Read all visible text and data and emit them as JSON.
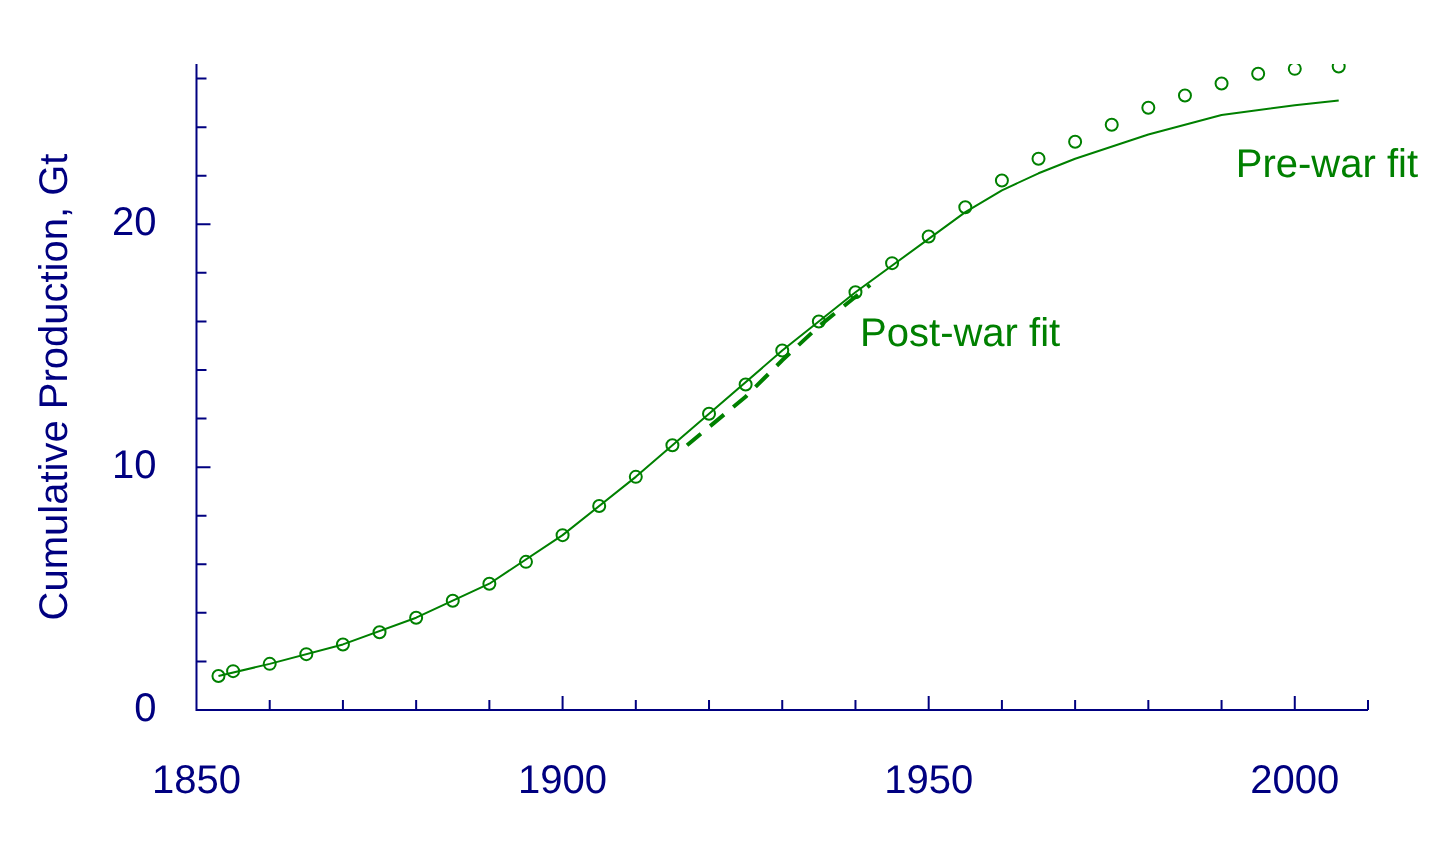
{
  "chart_data": {
    "type": "scatter",
    "ylabel": "Cumulative Production, Gt",
    "xlim": [
      1850,
      2010
    ],
    "ylim": [
      0,
      26.6
    ],
    "xticks": [
      1850,
      {
        "value": 1860,
        "label": null
      },
      {
        "value": 1870,
        "label": null
      },
      {
        "value": 1880,
        "label": null
      },
      {
        "value": 1890,
        "label": null
      },
      1900,
      {
        "value": 1910,
        "label": null
      },
      {
        "value": 1920,
        "label": null
      },
      {
        "value": 1930,
        "label": null
      },
      {
        "value": 1940,
        "label": null
      },
      1950,
      {
        "value": 1960,
        "label": null
      },
      {
        "value": 1970,
        "label": null
      },
      {
        "value": 1980,
        "label": null
      },
      {
        "value": 1990,
        "label": null
      },
      2000,
      {
        "value": 2010,
        "label": null
      }
    ],
    "yticks": [
      0,
      {
        "value": 2,
        "label": null
      },
      {
        "value": 4,
        "label": null
      },
      {
        "value": 6,
        "label": null
      },
      {
        "value": 8,
        "label": null
      },
      10,
      {
        "value": 12,
        "label": null
      },
      {
        "value": 14,
        "label": null
      },
      {
        "value": 16,
        "label": null
      },
      {
        "value": 18,
        "label": null
      },
      20,
      {
        "value": 22,
        "label": null
      },
      {
        "value": 24,
        "label": null
      },
      {
        "value": 26,
        "label": null
      }
    ],
    "legend": false,
    "series": [
      {
        "marker": "circle",
        "color": "#008000",
        "x": [
          1853,
          1855,
          1860,
          1865,
          1870,
          1875,
          1880,
          1885,
          1890,
          1895,
          1900,
          1905,
          1910,
          1915,
          1920,
          1925,
          1930,
          1935,
          1940,
          1945,
          1950,
          1955,
          1960,
          1965,
          1970,
          1975,
          1980,
          1985,
          1990,
          1995,
          2000,
          2006
        ],
        "values": [
          1.4,
          1.6,
          1.9,
          2.3,
          2.7,
          3.2,
          3.8,
          4.5,
          5.2,
          6.1,
          7.2,
          8.4,
          9.6,
          10.9,
          12.2,
          13.4,
          14.8,
          16.0,
          17.2,
          18.4,
          19.5,
          20.7,
          21.8,
          22.7,
          23.4,
          24.1,
          24.8,
          25.3,
          25.8,
          26.2,
          26.4,
          26.5
        ]
      },
      {
        "type": "line",
        "name": "Pre-war fit",
        "color": "#008000",
        "line_style": "solid",
        "x": [
          1853,
          1860,
          1870,
          1880,
          1890,
          1900,
          1910,
          1920,
          1930,
          1940,
          1950,
          1955,
          1960,
          1965,
          1970,
          1980,
          1990,
          2000,
          2006
        ],
        "values": [
          1.4,
          1.9,
          2.7,
          3.8,
          5.2,
          7.2,
          9.6,
          12.2,
          14.8,
          17.2,
          19.4,
          20.5,
          21.4,
          22.1,
          22.7,
          23.7,
          24.5,
          24.9,
          25.1
        ]
      },
      {
        "type": "line",
        "name": "Post-war fit",
        "color": "#008000",
        "line_style": "dashed",
        "x": [
          1917,
          1925,
          1930,
          1935,
          1942
        ],
        "values": [
          10.9,
          12.9,
          14.4,
          15.8,
          17.5
        ]
      }
    ]
  }
}
